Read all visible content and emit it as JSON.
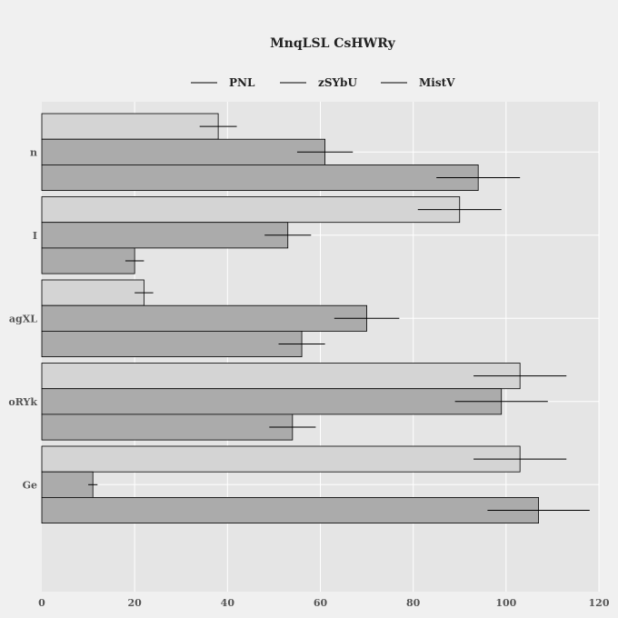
{
  "chart_data": {
    "type": "bar",
    "orientation": "horizontal",
    "title": "MnqLSL CsHWRy",
    "xlabel": "",
    "ylabel": "",
    "categories": [
      "n",
      "I",
      "agXL",
      "oRYk",
      "Ge"
    ],
    "xlim": [
      0,
      120
    ],
    "xticks": [
      0,
      20,
      40,
      60,
      80,
      100,
      120
    ],
    "grid": true,
    "legend": "top-center",
    "series": [
      {
        "name": "PNL",
        "color": "#d4d4d4",
        "values": [
          38,
          90,
          22,
          103,
          103
        ],
        "errors": [
          4,
          9,
          2,
          10,
          10
        ]
      },
      {
        "name": "zSYbU",
        "color": "#ababab",
        "values": [
          61,
          53,
          70,
          99,
          11
        ],
        "errors": [
          6,
          5,
          7,
          10,
          1
        ]
      },
      {
        "name": "MistV",
        "color": "#ababab",
        "values": [
          94,
          20,
          56,
          54,
          107
        ],
        "errors": [
          9,
          2,
          5,
          5,
          11
        ]
      }
    ]
  }
}
